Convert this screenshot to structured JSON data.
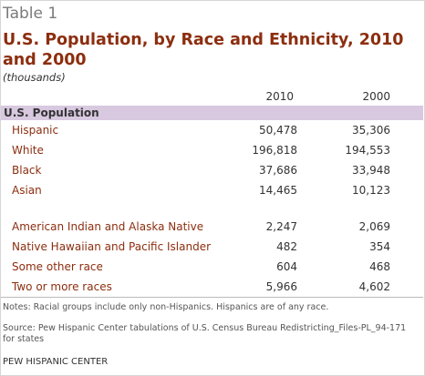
{
  "table_label": "Table 1",
  "title": "U.S. Population, by Race and Ethnicity, 2010 and 2000",
  "units": "(thousands)",
  "columns": [
    "2010",
    "2000"
  ],
  "section_label": "U.S. Population",
  "rows": [
    {
      "label": "Hispanic",
      "v2010": "50,478",
      "v2000": "35,306"
    },
    {
      "label": "White",
      "v2010": "196,818",
      "v2000": "194,553"
    },
    {
      "label": "Black",
      "v2010": "37,686",
      "v2000": "33,948"
    },
    {
      "label": "Asian",
      "v2010": "14,465",
      "v2000": "10,123"
    },
    {
      "label": "American Indian and Alaska Native",
      "v2010": "2,247",
      "v2000": "2,069"
    },
    {
      "label": "Native Hawaiian and Pacific Islander",
      "v2010": "482",
      "v2000": "354"
    },
    {
      "label": "Some other race",
      "v2010": "604",
      "v2000": "468"
    },
    {
      "label": "Two or more races",
      "v2010": "5,966",
      "v2000": "4,602"
    }
  ],
  "notes": "Notes: Racial groups include only non-Hispanics. Hispanics are of any race.",
  "source": "Source: Pew Hispanic Center tabulations of U.S. Census Bureau Redistricting_Files-PL_94-171 for states",
  "organization": "PEW HISPANIC CENTER",
  "colors": {
    "title": "#8c2e0f",
    "row_label": "#8c2e0f",
    "section_bar": "#d8c8e0",
    "table_label": "#7a7a7a"
  }
}
